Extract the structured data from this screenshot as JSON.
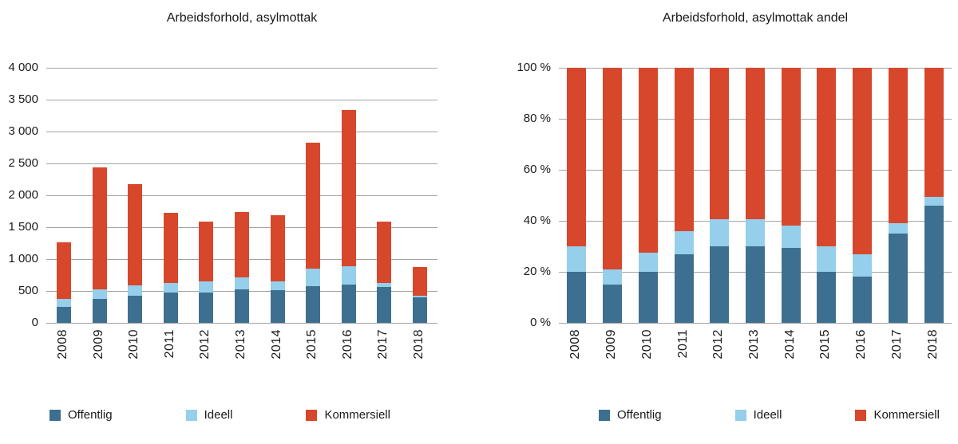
{
  "chart_data": [
    {
      "type": "bar",
      "stacked": true,
      "title": "Arbeidsforhold, asylmottak",
      "categories": [
        "2008",
        "2009",
        "2010",
        "2011",
        "2012",
        "2013",
        "2014",
        "2015",
        "2016",
        "2017",
        "2018"
      ],
      "series": [
        {
          "name": "Offentlig",
          "color": "#3d7090",
          "values": [
            250,
            370,
            430,
            470,
            480,
            520,
            510,
            570,
            600,
            560,
            400
          ]
        },
        {
          "name": "Ideell",
          "color": "#95cfeb",
          "values": [
            130,
            150,
            160,
            150,
            170,
            190,
            140,
            280,
            290,
            60,
            30
          ]
        },
        {
          "name": "Kommersiell",
          "color": "#d7472c",
          "values": [
            880,
            1920,
            1580,
            1100,
            940,
            1030,
            1040,
            1970,
            2450,
            970,
            440
          ]
        }
      ],
      "totals": [
        1260,
        2440,
        2170,
        1720,
        1590,
        1740,
        1690,
        2820,
        3340,
        1590,
        870
      ],
      "ylim": [
        0,
        4000
      ],
      "ytick_values": [
        0,
        500,
        1000,
        1500,
        2000,
        2500,
        3000,
        3500,
        4000
      ],
      "ytick_labels": [
        "0",
        "500",
        "1 000",
        "1 500",
        "2 000",
        "2 500",
        "3 000",
        "3 500",
        "4 000"
      ],
      "xlabel": "",
      "ylabel": "",
      "grid": true,
      "legend_position": "bottom"
    },
    {
      "type": "bar",
      "stacked": true,
      "percent": true,
      "title": "Arbeidsforhold, asylmottak andel",
      "categories": [
        "2008",
        "2009",
        "2010",
        "2011",
        "2012",
        "2013",
        "2014",
        "2015",
        "2016",
        "2017",
        "2018"
      ],
      "series": [
        {
          "name": "Offentlig",
          "color": "#3d7090",
          "values": [
            20,
            15,
            20,
            27,
            30,
            30,
            29.5,
            20,
            18,
            35,
            46
          ]
        },
        {
          "name": "Ideell",
          "color": "#95cfeb",
          "values": [
            10,
            6,
            7.5,
            9,
            10.5,
            10.5,
            8.5,
            10,
            9,
            4,
            3.5
          ]
        },
        {
          "name": "Kommersiell",
          "color": "#d7472c",
          "values": [
            70,
            79,
            72.5,
            64,
            59.5,
            59.5,
            62,
            70,
            73,
            61,
            50.5
          ]
        }
      ],
      "ylim": [
        0,
        100
      ],
      "ytick_values": [
        0,
        20,
        40,
        60,
        80,
        100
      ],
      "ytick_labels": [
        "0 %",
        "20 %",
        "40 %",
        "60 %",
        "80 %",
        "100 %"
      ],
      "xlabel": "",
      "ylabel": "",
      "grid": true,
      "legend_position": "bottom"
    }
  ]
}
